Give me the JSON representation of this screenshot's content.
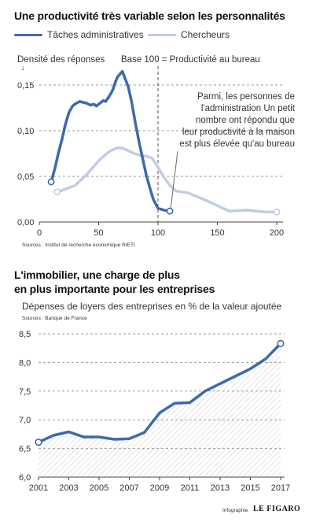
{
  "chart1": {
    "title": "Une productivité très variable selon les personnalités",
    "ylabel": "Densité des réponses",
    "ylabel_arrow": "↓",
    "baseline_note": "Base 100 = Productivité au bureau",
    "annotation": [
      "Parmi, les personnes de",
      "l'administration Un petit",
      "nombre ont répondu que",
      "leur productivité à la maison",
      "est plus élevée qu'au bureau"
    ],
    "source": "Sources : Institut de recherche économique RIETI",
    "colors": {
      "admin": "#3d6aac",
      "chercheurs": "#c3cce5"
    }
  },
  "chart2": {
    "title_lines": [
      "L'immobilier, une charge de plus",
      "en plus importante pour les entreprises"
    ],
    "subtitle": "Dépenses de loyers des entreprises en % de la valeur ajoutée",
    "source": "Sources : Banque de France",
    "color": "#3d6aac"
  },
  "credit": {
    "prefix": "Infographie",
    "brand": "LE FIGARO"
  },
  "chart_data": [
    {
      "type": "line",
      "title": "Une productivité très variable selon les personnalités",
      "ylabel": "Densité des réponses",
      "xlim": [
        0,
        200
      ],
      "ylim": [
        0,
        0.15
      ],
      "xticks": [
        0,
        50,
        100,
        150,
        200
      ],
      "yticks": [
        0,
        0.05,
        0.1,
        0.15
      ],
      "ytick_labels": [
        "0,00",
        "0,05",
        "0,10",
        "0,15"
      ],
      "grid": "horizontal dashed",
      "reference_line": {
        "x": 100,
        "label": "Base 100 = Productivité au bureau"
      },
      "legend": "top-left",
      "series": [
        {
          "name": "Tâches administratives",
          "x": [
            10,
            13,
            16,
            19,
            22,
            25,
            28,
            31,
            34,
            37,
            40,
            43,
            46,
            48,
            50,
            52,
            54,
            56,
            58,
            60,
            62,
            64,
            66,
            68,
            70,
            72,
            75,
            78,
            81,
            84,
            87,
            90,
            93,
            96,
            100,
            105,
            110
          ],
          "y": [
            0.044,
            0.058,
            0.075,
            0.09,
            0.107,
            0.12,
            0.127,
            0.13,
            0.132,
            0.131,
            0.13,
            0.128,
            0.129,
            0.127,
            0.129,
            0.131,
            0.133,
            0.132,
            0.136,
            0.14,
            0.145,
            0.153,
            0.159,
            0.162,
            0.165,
            0.158,
            0.148,
            0.13,
            0.108,
            0.088,
            0.07,
            0.052,
            0.038,
            0.025,
            0.015,
            0.013,
            0.012
          ],
          "color": "#3d6aac"
        },
        {
          "name": "Chercheurs",
          "x": [
            15,
            20,
            30,
            40,
            50,
            55,
            60,
            65,
            70,
            75,
            80,
            85,
            90,
            95,
            100,
            105,
            110,
            115,
            125,
            140,
            160,
            175,
            190,
            200
          ],
          "y": [
            0.033,
            0.035,
            0.04,
            0.052,
            0.067,
            0.073,
            0.078,
            0.081,
            0.081,
            0.078,
            0.075,
            0.073,
            0.072,
            0.07,
            0.06,
            0.049,
            0.04,
            0.034,
            0.032,
            0.024,
            0.012,
            0.013,
            0.011,
            0.011
          ],
          "color": "#c3cce5"
        }
      ]
    },
    {
      "type": "area",
      "title": "L'immobilier, une charge de plus en plus importante pour les entreprises",
      "subtitle": "Dépenses de loyers des entreprises en % de la valeur ajoutée",
      "xlim": [
        2001,
        2017
      ],
      "ylim": [
        6.0,
        8.5
      ],
      "xticks": [
        2001,
        2003,
        2005,
        2007,
        2009,
        2011,
        2013,
        2015,
        2017
      ],
      "yticks": [
        6.0,
        6.5,
        7.0,
        7.5,
        8.0,
        8.5
      ],
      "ytick_labels": [
        "6,0",
        "6,5",
        "7,0",
        "7,5",
        "8,0",
        "8,5"
      ],
      "grid": "horizontal dashed",
      "fill": "hatched",
      "x": [
        2001,
        2002,
        2003,
        2004,
        2005,
        2006,
        2007,
        2008,
        2009,
        2010,
        2011,
        2012,
        2013,
        2014,
        2015,
        2016,
        2017
      ],
      "y": [
        6.61,
        6.73,
        6.79,
        6.7,
        6.7,
        6.66,
        6.67,
        6.78,
        7.12,
        7.29,
        7.3,
        7.5,
        7.63,
        7.76,
        7.89,
        8.06,
        8.33
      ]
    }
  ]
}
